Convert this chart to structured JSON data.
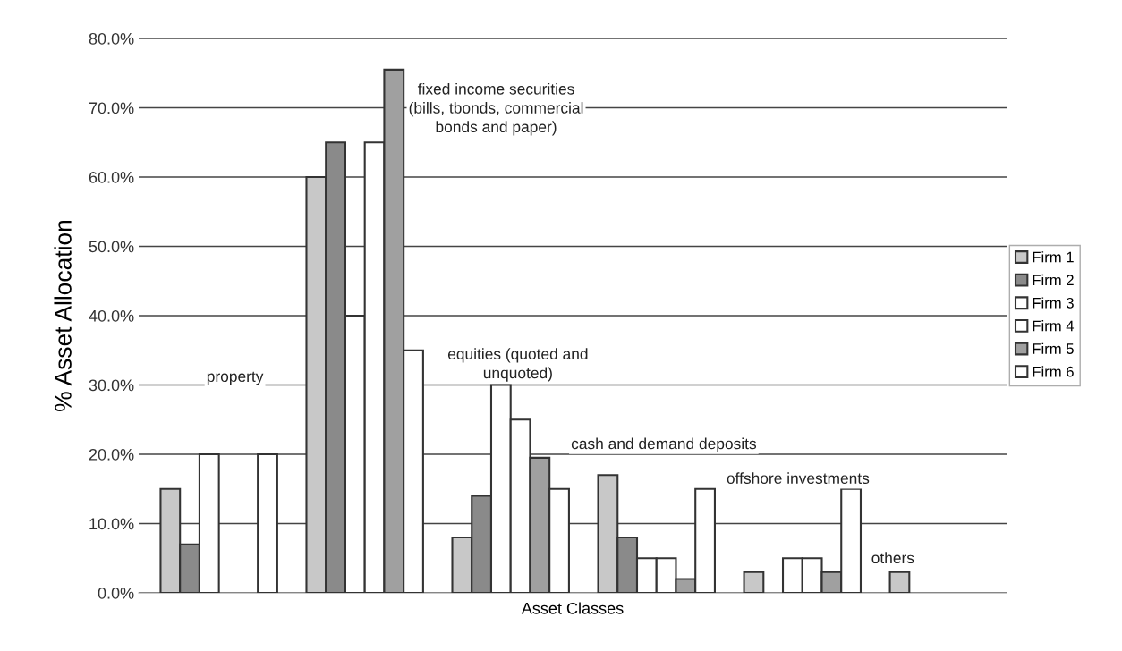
{
  "chart_data": {
    "type": "bar",
    "xlabel": "Asset Classes",
    "ylabel": "% Asset Allocation",
    "categories": [
      null,
      null,
      null,
      null,
      null,
      null
    ],
    "series": [
      {
        "name": "Firm 1",
        "color": "#c8c8c8",
        "values": [
          15,
          60,
          8,
          17,
          3,
          3
        ]
      },
      {
        "name": "Firm 2",
        "color": "#8a8a8a",
        "values": [
          7,
          65,
          14,
          8,
          null,
          null
        ]
      },
      {
        "name": "Firm 3",
        "color": "#ffffff",
        "values": [
          20,
          40,
          30,
          5,
          5,
          null
        ]
      },
      {
        "name": "Firm 4",
        "color": "#ffffff",
        "values": [
          null,
          65,
          25,
          5,
          5,
          null
        ]
      },
      {
        "name": "Firm 5",
        "color": "#a0a0a0",
        "values": [
          null,
          75.5,
          19.5,
          2,
          3,
          null
        ]
      },
      {
        "name": "Firm 6",
        "color": "#ffffff",
        "values": [
          20,
          35,
          15,
          15,
          15,
          null
        ]
      }
    ],
    "ylim": [
      0,
      80
    ],
    "yticks": [
      {
        "value": 0,
        "label": "0.0%"
      },
      {
        "value": 10,
        "label": "10.0%"
      },
      {
        "value": 20,
        "label": "20.0%"
      },
      {
        "value": 30,
        "label": "30.0%"
      },
      {
        "value": 40,
        "label": "40.0%"
      },
      {
        "value": 50,
        "label": "50.0%"
      },
      {
        "value": 60,
        "label": "60.0%"
      },
      {
        "value": 70,
        "label": "70.0%"
      },
      {
        "value": 80,
        "label": "80.0%"
      }
    ],
    "annotations": [
      "property",
      "fixed income securities\n(bills, tbonds, commercial\nbonds and paper)",
      "equities (quoted and\nunquoted)",
      "cash and demand deposits",
      "offshore investments",
      "others"
    ],
    "grid": "y",
    "legend": "right"
  }
}
